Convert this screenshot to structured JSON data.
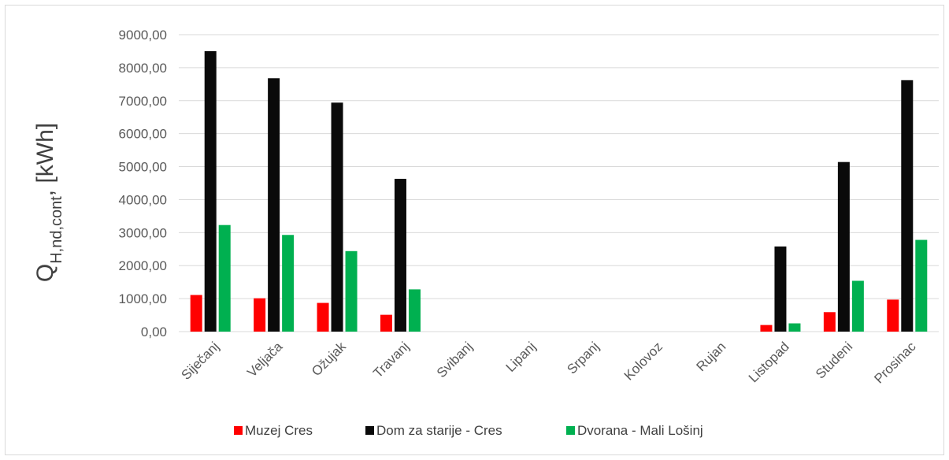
{
  "chart_data": {
    "type": "bar",
    "categories": [
      "Siječanj",
      "Veljača",
      "Ožujak",
      "Travanj",
      "Svibanj",
      "Lipanj",
      "Srpanj",
      "Kolovoz",
      "Rujan",
      "Listopad",
      "Studeni",
      "Prosinac"
    ],
    "series": [
      {
        "name": "Muzej Cres",
        "color": "#ff0000",
        "values": [
          1110,
          1010,
          870,
          510,
          0,
          0,
          0,
          0,
          0,
          200,
          590,
          970
        ]
      },
      {
        "name": "Dom za starije - Cres",
        "color": "#0a0a0a",
        "values": [
          8500,
          7680,
          6940,
          4630,
          0,
          0,
          0,
          0,
          0,
          2580,
          5140,
          7620
        ]
      },
      {
        "name": "Dvorana - Mali Lošinj",
        "color": "#00b050",
        "values": [
          3230,
          2930,
          2440,
          1280,
          0,
          0,
          0,
          0,
          0,
          250,
          1540,
          2780
        ]
      }
    ],
    "ylabel_main": "Q",
    "ylabel_sub": "H,nd,cont",
    "ylabel_unit": ", [kWh]",
    "ylim": [
      0,
      9000
    ],
    "yticks": [
      "0,00",
      "1000,00",
      "2000,00",
      "3000,00",
      "4000,00",
      "5000,00",
      "6000,00",
      "7000,00",
      "8000,00",
      "9000,00"
    ],
    "grid": true,
    "legend_position": "bottom"
  }
}
